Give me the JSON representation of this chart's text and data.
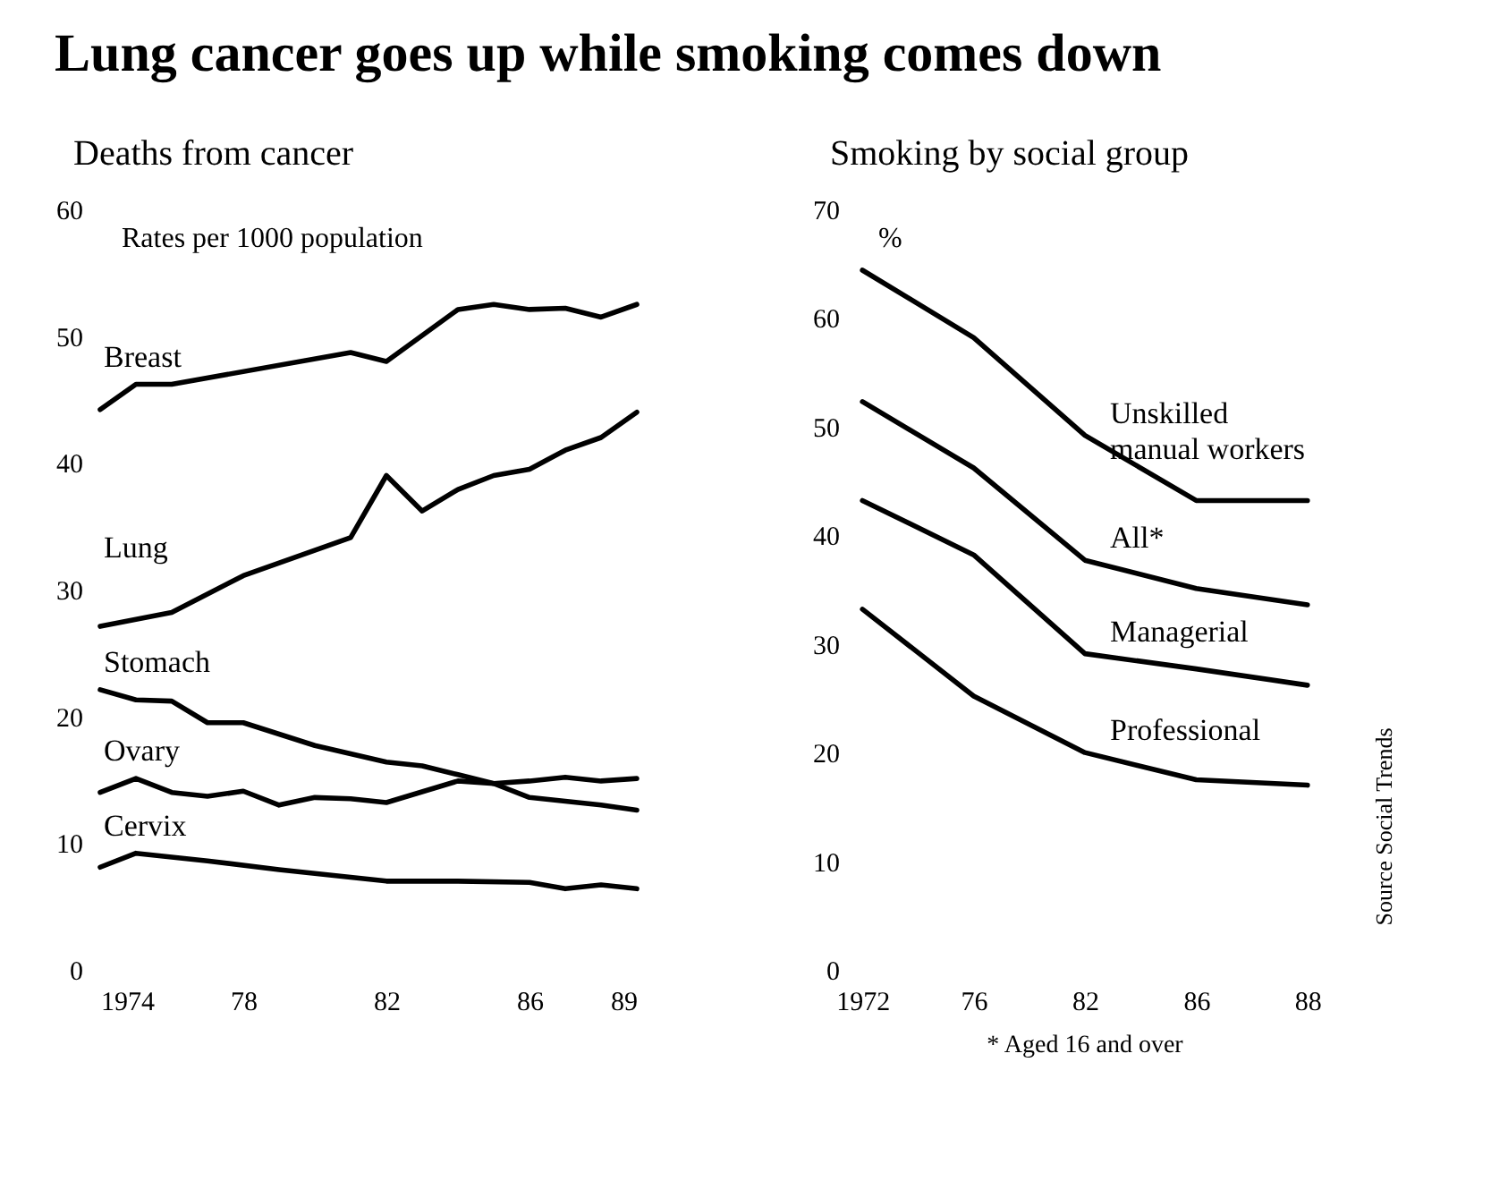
{
  "chart_data": [
    {
      "type": "line",
      "title": "Lung cancer goes up while smoking comes down",
      "subtitle": "Deaths from cancer",
      "ylabel": "Rates per 1000 population",
      "xlim": [
        1974,
        1989
      ],
      "xticks": [
        1974,
        {
          "value": 1978,
          "label": "78"
        },
        {
          "value": 1982,
          "label": "82"
        },
        {
          "value": 1986,
          "label": "86"
        },
        {
          "value": 1989,
          "label": "89"
        }
      ],
      "ylim": [
        0,
        60
      ],
      "yticks": [
        0,
        10,
        20,
        30,
        40,
        50,
        60
      ],
      "grid": false,
      "legend": false,
      "series": [
        {
          "name": "Breast",
          "color": "#000000",
          "x": [
            1974,
            1975,
            1976,
            1981,
            1982,
            1984,
            1985,
            1986,
            1987,
            1988,
            1989
          ],
          "values": [
            44.2,
            46.2,
            46.2,
            48.7,
            48,
            52.1,
            52.5,
            52.1,
            52.2,
            51.5,
            52.5
          ]
        },
        {
          "name": "Lung",
          "color": "#000000",
          "x": [
            1974,
            1976,
            1978,
            1981,
            1982,
            1983,
            1984,
            1985,
            1986,
            1987,
            1988,
            1989
          ],
          "values": [
            27.1,
            28.2,
            31.1,
            34.1,
            39,
            36.2,
            37.9,
            39,
            39.5,
            41,
            42,
            44
          ]
        },
        {
          "name": "Stomach",
          "color": "#000000",
          "x": [
            1974,
            1975,
            1976,
            1977,
            1978,
            1980,
            1982,
            1983,
            1984,
            1985,
            1986,
            1988,
            1989
          ],
          "values": [
            22.1,
            21.3,
            21.2,
            19.5,
            19.5,
            17.7,
            16.4,
            16.1,
            15.4,
            14.7,
            13.6,
            13,
            12.6
          ]
        },
        {
          "name": "Ovary",
          "color": "#000000",
          "x": [
            1974,
            1975,
            1976,
            1977,
            1978,
            1979,
            1980,
            1981,
            1982,
            1984,
            1985,
            1986,
            1987,
            1988,
            1989
          ],
          "values": [
            14,
            15.1,
            14,
            13.7,
            14.1,
            13,
            13.6,
            13.5,
            13.2,
            14.9,
            14.7,
            14.9,
            15.2,
            14.9,
            15.1
          ]
        },
        {
          "name": "Cervix",
          "color": "#000000",
          "x": [
            1974,
            1975,
            1977,
            1979,
            1982,
            1984,
            1986,
            1987,
            1988,
            1989
          ],
          "values": [
            8.1,
            9.2,
            8.6,
            7.9,
            7,
            7,
            6.9,
            6.4,
            6.7,
            6.4
          ]
        }
      ]
    },
    {
      "type": "line",
      "subtitle": "Smoking by social group",
      "ylabel": "%",
      "categories": [
        "1972",
        "76",
        "82",
        "86",
        "88"
      ],
      "ylim": [
        0,
        70
      ],
      "yticks": [
        0,
        10,
        20,
        30,
        40,
        50,
        60,
        70
      ],
      "grid": false,
      "legend": false,
      "annotations": [
        "* Aged 16 and over",
        "Source Social Trends"
      ],
      "series": [
        {
          "name": "Unskilled\nmanual workers",
          "color": "#000000",
          "values": [
            64.4,
            58.2,
            49.2,
            43.2,
            43.2
          ]
        },
        {
          "name": "All*",
          "color": "#000000",
          "values": [
            52.3,
            46.2,
            37.7,
            35.1,
            33.6
          ]
        },
        {
          "name": "Managerial",
          "color": "#000000",
          "values": [
            43.2,
            38.2,
            29.1,
            27.7,
            26.2
          ]
        },
        {
          "name": "Professional",
          "color": "#000000",
          "values": [
            33.2,
            25.2,
            20,
            17.5,
            17
          ]
        }
      ]
    }
  ]
}
